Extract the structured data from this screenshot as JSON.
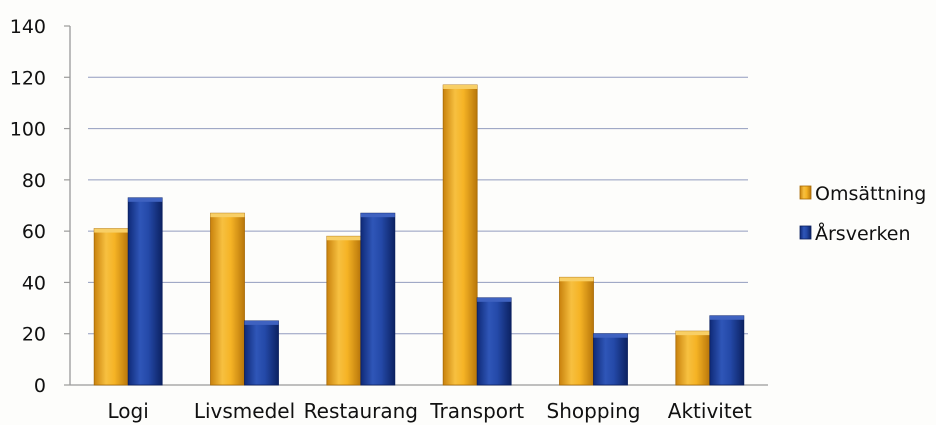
{
  "chart_data": {
    "type": "bar",
    "title": "",
    "xlabel": "",
    "ylabel": "",
    "categories": [
      "Logi",
      "Livsmedel",
      "Restaurang",
      "Transport",
      "Shopping",
      "Aktivitet"
    ],
    "series": [
      {
        "name": "Omsättning",
        "values": [
          61,
          67,
          58,
          117,
          42,
          21
        ],
        "color": "#f2ab1c"
      },
      {
        "name": "Årsverken",
        "values": [
          73,
          25,
          67,
          34,
          20,
          27
        ],
        "color": "#1f3f9a"
      }
    ],
    "ylim": [
      0,
      140
    ],
    "yticks": [
      0,
      20,
      40,
      60,
      80,
      100,
      120,
      140
    ],
    "grid": true,
    "legend_position": "right"
  }
}
